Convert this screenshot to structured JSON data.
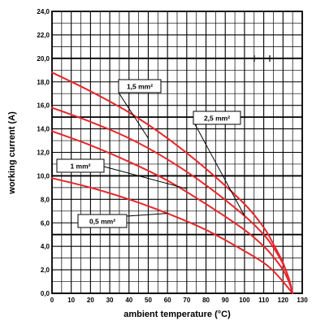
{
  "chart_data": {
    "type": "line",
    "xlabel": "ambient temperature (°C)",
    "ylabel": "working current (A)",
    "xlim": [
      0,
      130
    ],
    "ylim": [
      0,
      24
    ],
    "grid": true,
    "line_color": "#e8262b",
    "x_ticks": [
      "0",
      "10",
      "20",
      "30",
      "40",
      "50",
      "60",
      "70",
      "80",
      "90",
      "100",
      "110",
      "120",
      "130"
    ],
    "y_ticks": [
      "0,0",
      "2,0",
      "4,0",
      "6,0",
      "8,0",
      "10,0",
      "12,0",
      "14,0",
      "16,0",
      "18,0",
      "20,0",
      "22,0",
      "24,0"
    ],
    "series": [
      {
        "name": "1,5 mm²",
        "points": [
          [
            0,
            18.8
          ],
          [
            20,
            17.2
          ],
          [
            40,
            15.4
          ],
          [
            60,
            13.2
          ],
          [
            80,
            10.6
          ],
          [
            100,
            7.6
          ],
          [
            110,
            5.6
          ],
          [
            115,
            4.2
          ],
          [
            120,
            2.6
          ],
          [
            123,
            1.2
          ],
          [
            125,
            0
          ]
        ]
      },
      {
        "name": "2,5 mm²",
        "points": [
          [
            0,
            15.8
          ],
          [
            20,
            14.6
          ],
          [
            40,
            13.2
          ],
          [
            60,
            11.4
          ],
          [
            80,
            9.2
          ],
          [
            100,
            6.6
          ],
          [
            110,
            5.0
          ],
          [
            115,
            3.9
          ],
          [
            120,
            2.5
          ],
          [
            123,
            1.3
          ],
          [
            125,
            0
          ]
        ]
      },
      {
        "name": "1 mm²",
        "points": [
          [
            0,
            13.8
          ],
          [
            20,
            12.6
          ],
          [
            40,
            11.2
          ],
          [
            60,
            9.6
          ],
          [
            80,
            7.6
          ],
          [
            100,
            5.4
          ],
          [
            110,
            4.0
          ],
          [
            115,
            3.1
          ],
          [
            120,
            2.0
          ],
          [
            123,
            1.0
          ],
          [
            125,
            0
          ]
        ]
      },
      {
        "name": "0,5 mm²",
        "points": [
          [
            0,
            9.8
          ],
          [
            20,
            9.0
          ],
          [
            40,
            8.0
          ],
          [
            60,
            6.8
          ],
          [
            80,
            5.4
          ],
          [
            100,
            3.6
          ],
          [
            110,
            2.6
          ],
          [
            115,
            1.9
          ],
          [
            120,
            1.0
          ],
          [
            123,
            0.4
          ],
          [
            125,
            0
          ]
        ]
      }
    ]
  }
}
